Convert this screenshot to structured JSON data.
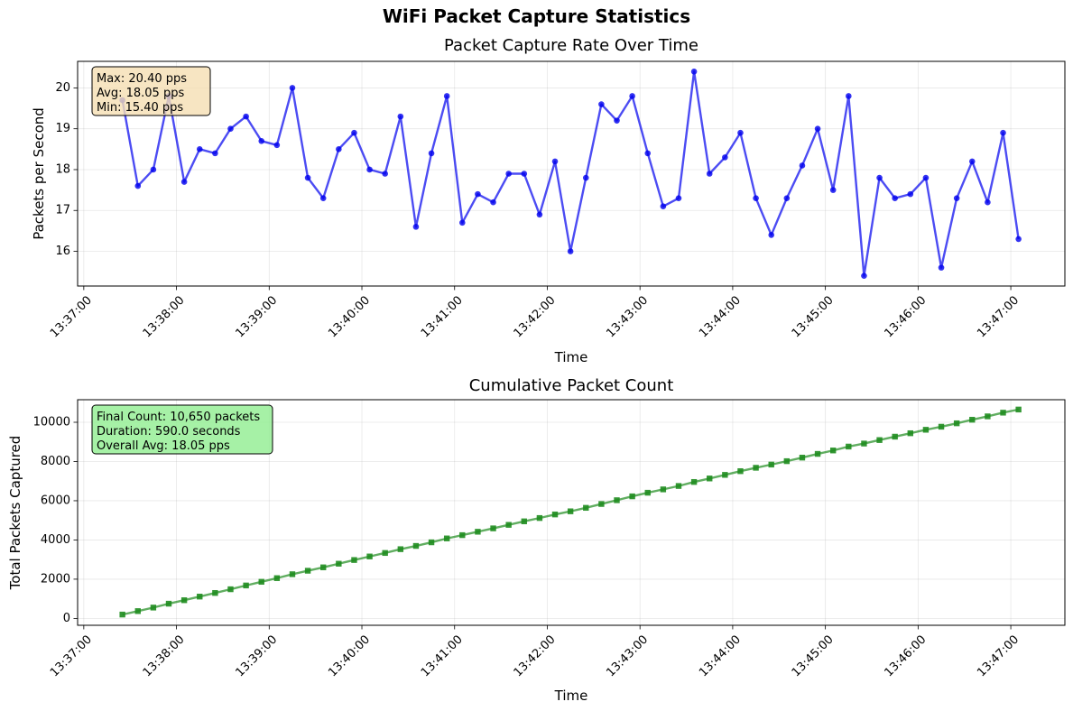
{
  "suptitle": "WiFi Packet Capture Statistics",
  "chart_data": [
    {
      "type": "line",
      "title": "Packet Capture Rate Over Time",
      "xlabel": "Time",
      "ylabel": "Packets per Second",
      "x_ticks": [
        "13:37:00",
        "13:38:00",
        "13:39:00",
        "13:40:00",
        "13:41:00",
        "13:42:00",
        "13:43:00",
        "13:44:00",
        "13:45:00",
        "13:46:00",
        "13:47:00"
      ],
      "y_ticks": [
        16,
        17,
        18,
        19,
        20
      ],
      "ylim": [
        15.15,
        20.65
      ],
      "x_start": "13:37:25",
      "x_step_seconds": 10,
      "grid": true,
      "color": "#0000ee",
      "marker": "circle",
      "series": [
        {
          "values": [
            19.7,
            17.6,
            18.0,
            19.8,
            17.7,
            18.5,
            18.4,
            19.0,
            19.3,
            18.7,
            18.6,
            20.0,
            17.8,
            17.3,
            18.5,
            18.9,
            18.0,
            17.9,
            19.3,
            16.6,
            18.4,
            19.8,
            16.7,
            17.4,
            17.2,
            17.9,
            17.9,
            16.9,
            18.2,
            16.0,
            17.8,
            19.6,
            19.2,
            19.8,
            18.4,
            17.1,
            17.3,
            20.4,
            17.9,
            18.3,
            18.9,
            17.3,
            16.4,
            17.3,
            18.1,
            19.0,
            17.5,
            19.8,
            15.4,
            17.8,
            17.3,
            17.4,
            17.8,
            15.6,
            17.3,
            18.2,
            17.2,
            18.9,
            16.3
          ]
        }
      ],
      "annotation": {
        "lines": [
          "Max: 20.40 pps",
          "Avg: 18.05 pps",
          "Min: 15.40 pps"
        ],
        "bg": "#f5deb3"
      }
    },
    {
      "type": "line",
      "title": "Cumulative Packet Count",
      "xlabel": "Time",
      "ylabel": "Total Packets Captured",
      "x_ticks": [
        "13:37:00",
        "13:38:00",
        "13:39:00",
        "13:40:00",
        "13:41:00",
        "13:42:00",
        "13:43:00",
        "13:44:00",
        "13:45:00",
        "13:46:00",
        "13:47:00"
      ],
      "y_ticks": [
        0,
        2000,
        4000,
        6000,
        8000,
        10000
      ],
      "ylim": [
        -350,
        11150
      ],
      "x_start": "13:37:25",
      "x_step_seconds": 10,
      "grid": true,
      "color": "#1e8c1e",
      "marker": "square",
      "series": [
        {
          "values": [
            197,
            373,
            553,
            751,
            928,
            1113,
            1297,
            1487,
            1680,
            1867,
            2053,
            2253,
            2431,
            2604,
            2789,
            2978,
            3158,
            3337,
            3530,
            3696,
            3880,
            4078,
            4245,
            4419,
            4591,
            4770,
            4949,
            5118,
            5300,
            5460,
            5638,
            5834,
            6026,
            6224,
            6408,
            6579,
            6752,
            6956,
            7135,
            7318,
            7507,
            7680,
            7844,
            8017,
            8198,
            8388,
            8563,
            8761,
            8915,
            9093,
            9266,
            9440,
            9618,
            9774,
            9947,
            10129,
            10301,
            10490,
            10650
          ]
        }
      ],
      "annotation": {
        "lines": [
          "Final Count: 10,650 packets",
          "Duration: 590.0 seconds",
          "Overall Avg: 18.05 pps"
        ],
        "bg": "#90ee90"
      }
    }
  ]
}
